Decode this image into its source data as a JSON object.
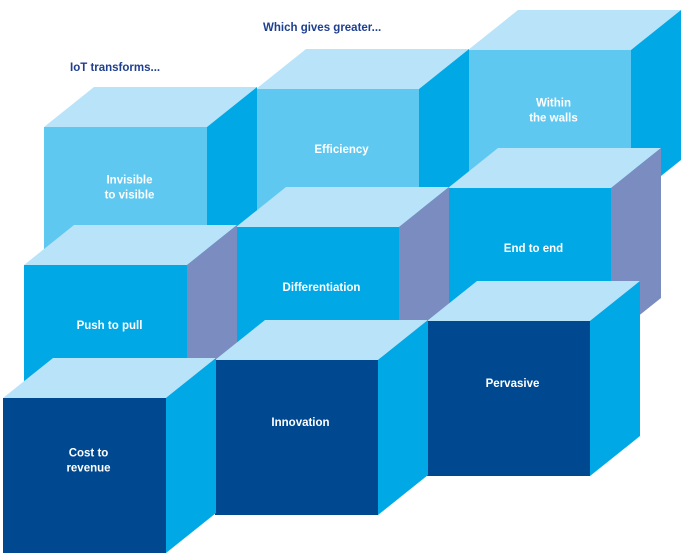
{
  "headings": {
    "top": "Which gives greater...",
    "left": "IoT transforms..."
  },
  "colors": {
    "heading": "#1f3f8f",
    "top_face": "#b8e3f8",
    "light_front": "#5ec8f0",
    "light_side": "#00a8e6",
    "mid_front": "#00a8e6",
    "mid_side": "#7b8cc1",
    "dark_front": "#004990",
    "dark_side": "#00a8e6",
    "label": "#ffffff"
  },
  "cubes": [
    {
      "id": "within-the-walls",
      "lines": [
        "Within",
        "the walls"
      ],
      "shade": "light",
      "tier": "top"
    },
    {
      "id": "efficiency",
      "lines": [
        "Efficiency"
      ],
      "shade": "light",
      "tier": "top"
    },
    {
      "id": "invisible-to-visible",
      "lines": [
        "Invisible",
        "to visible"
      ],
      "shade": "light",
      "tier": "top"
    },
    {
      "id": "end-to-end",
      "lines": [
        "End to end"
      ],
      "shade": "mid",
      "tier": "middle"
    },
    {
      "id": "differentiation",
      "lines": [
        "Differentiation"
      ],
      "shade": "mid",
      "tier": "middle"
    },
    {
      "id": "push-to-pull",
      "lines": [
        "Push to pull"
      ],
      "shade": "mid",
      "tier": "middle"
    },
    {
      "id": "pervasive",
      "lines": [
        "Pervasive"
      ],
      "shade": "dark",
      "tier": "bottom"
    },
    {
      "id": "innovation",
      "lines": [
        "Innovation"
      ],
      "shade": "dark",
      "tier": "bottom"
    },
    {
      "id": "cost-to-revenue",
      "lines": [
        "Cost to",
        "revenue"
      ],
      "shade": "dark",
      "tier": "bottom"
    }
  ]
}
